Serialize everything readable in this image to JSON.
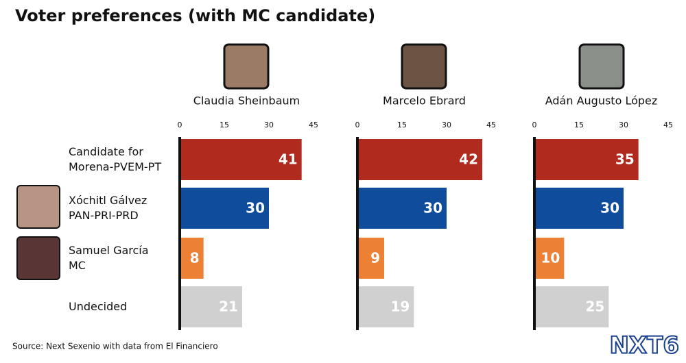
{
  "title": "Voter preferences (with MC candidate)",
  "source": "Source: Next Sexenio with data from El Financiero",
  "logo": "NXT6",
  "chart_data": [
    {
      "type": "bar",
      "orientation": "horizontal",
      "subtitle": "Claudia Sheinbaum",
      "categories": [
        [
          "Candidate for",
          "Morena-PVEM-PT"
        ],
        [
          "Xóchitl Gálvez",
          "PAN-PRI-PRD"
        ],
        [
          "Samuel García",
          "MC"
        ],
        [
          "Undecided"
        ]
      ],
      "values": [
        41,
        30,
        8,
        21
      ],
      "colors": [
        "#b02a1e",
        "#0f4c9c",
        "#ec8034",
        "#d0d0d0"
      ],
      "xlim": [
        0,
        45
      ],
      "xticks": [
        0,
        15,
        30,
        45
      ]
    },
    {
      "type": "bar",
      "orientation": "horizontal",
      "subtitle": "Marcelo Ebrard",
      "values": [
        42,
        30,
        9,
        19
      ],
      "colors": [
        "#b02a1e",
        "#0f4c9c",
        "#ec8034",
        "#d0d0d0"
      ],
      "xlim": [
        0,
        45
      ],
      "xticks": [
        0,
        15,
        30,
        45
      ]
    },
    {
      "type": "bar",
      "orientation": "horizontal",
      "subtitle": "Adán Augusto López",
      "values": [
        35,
        30,
        10,
        25
      ],
      "colors": [
        "#b02a1e",
        "#0f4c9c",
        "#ec8034",
        "#d0d0d0"
      ],
      "xlim": [
        0,
        45
      ],
      "xticks": [
        0,
        15,
        30,
        45
      ]
    }
  ]
}
